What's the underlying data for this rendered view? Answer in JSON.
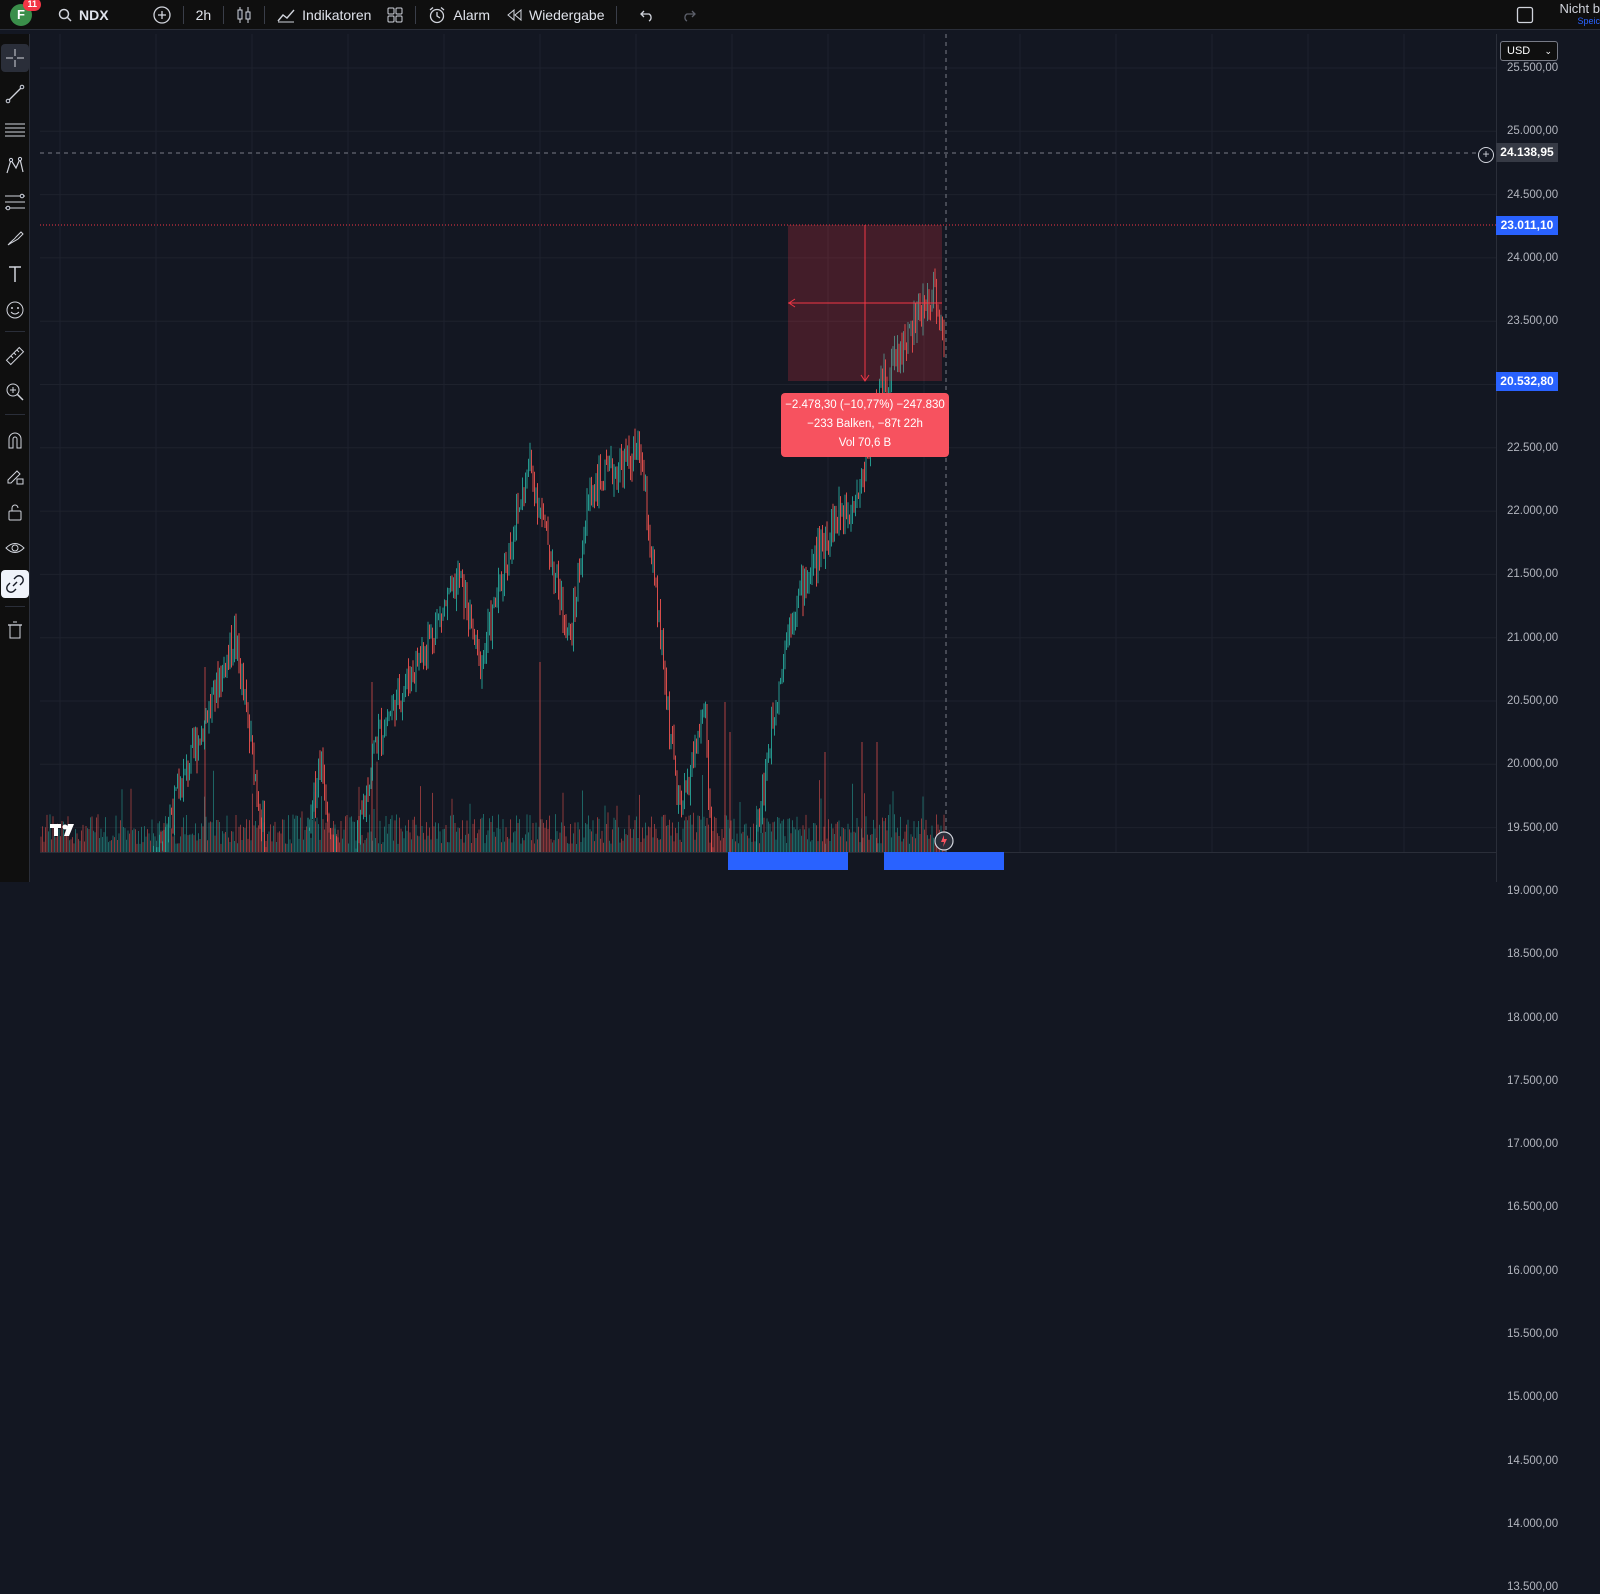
{
  "topbar": {
    "avatar_letter": "F",
    "notification_count": "11",
    "symbol": "NDX",
    "interval": "2h",
    "indicators_label": "Indikatoren",
    "alert_label": "Alarm",
    "replay_label": "Wiedergabe",
    "right_status": "Nicht b",
    "right_sub": "Speic"
  },
  "price_scale": {
    "currency": "USD",
    "ticks": [
      "25.500,00",
      "25.000,00",
      "24.500,00",
      "24.000,00",
      "23.500,00",
      "23.000,00",
      "22.500,00",
      "22.000,00",
      "21.500,00",
      "21.000,00",
      "20.500,00",
      "20.000,00",
      "19.500,00",
      "19.000,00",
      "18.500,00",
      "18.000,00",
      "17.500,00",
      "17.000,00",
      "16.500,00",
      "16.000,00",
      "15.500,00",
      "15.000,00",
      "14.500,00",
      "14.000,00",
      "13.500,00"
    ],
    "crosshair_price": "24.138,95",
    "last_price": "23.011,10",
    "measure_low_price": "20.532,80"
  },
  "measure": {
    "line1": "−2.478,30 (−10,77%) −247.830",
    "line2": "−233 Balken, −87t 22h",
    "line3": "Vol 70,6 B"
  },
  "colors": {
    "up": "#26a69a",
    "down": "#ef5350",
    "last_price": "#2962ff",
    "measure": "#f7525f",
    "background": "#131722"
  },
  "icons": {
    "left_toolbar": [
      "crosshair-icon",
      "trend-line-icon",
      "horizontal-lines-icon",
      "pattern-icon",
      "fib-icon",
      "brush-icon",
      "text-icon",
      "emoji-icon",
      "ruler-icon",
      "zoom-in-icon",
      "magnet-icon",
      "lock-pencil-icon",
      "lock-icon",
      "eye-icon",
      "link-icon",
      "trash-icon"
    ]
  }
}
